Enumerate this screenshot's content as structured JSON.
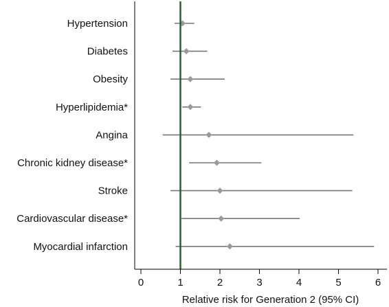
{
  "chart_data": {
    "type": "scatter",
    "title": "",
    "xlabel": "Relative risk for Generation 2 (95% CI)",
    "ylabel": "",
    "xlim": [
      0,
      6
    ],
    "xticks": [
      0,
      1,
      2,
      3,
      4,
      5,
      6
    ],
    "xtick_labels": [
      "0",
      "1",
      "2",
      "3",
      "4",
      "5",
      "6"
    ],
    "reference_line": {
      "x": 1,
      "color": "#1f5f1f"
    },
    "grid": false,
    "colors": {
      "marker": "#9a9a9a",
      "ci_line": "#777777",
      "axis": "#000000"
    },
    "series": [
      {
        "points": [
          {
            "label": "Hypertension",
            "rr": 1.05,
            "low": 0.85,
            "high": 1.35
          },
          {
            "label": "Diabetes",
            "rr": 1.15,
            "low": 0.8,
            "high": 1.68
          },
          {
            "label": "Obesity",
            "rr": 1.25,
            "low": 0.75,
            "high": 2.12
          },
          {
            "label": "Hyperlipidemia*",
            "rr": 1.25,
            "low": 1.05,
            "high": 1.52
          },
          {
            "label": "Angina",
            "rr": 1.72,
            "low": 0.55,
            "high": 5.38
          },
          {
            "label": "Chronic kidney disease*",
            "rr": 1.92,
            "low": 1.22,
            "high": 3.05
          },
          {
            "label": "Stroke",
            "rr": 2.0,
            "low": 0.75,
            "high": 5.35
          },
          {
            "label": "Cardiovascular disease*",
            "rr": 2.03,
            "low": 1.03,
            "high": 4.02
          },
          {
            "label": "Myocardial infarction",
            "rr": 2.25,
            "low": 0.88,
            "high": 5.9
          }
        ]
      }
    ]
  }
}
